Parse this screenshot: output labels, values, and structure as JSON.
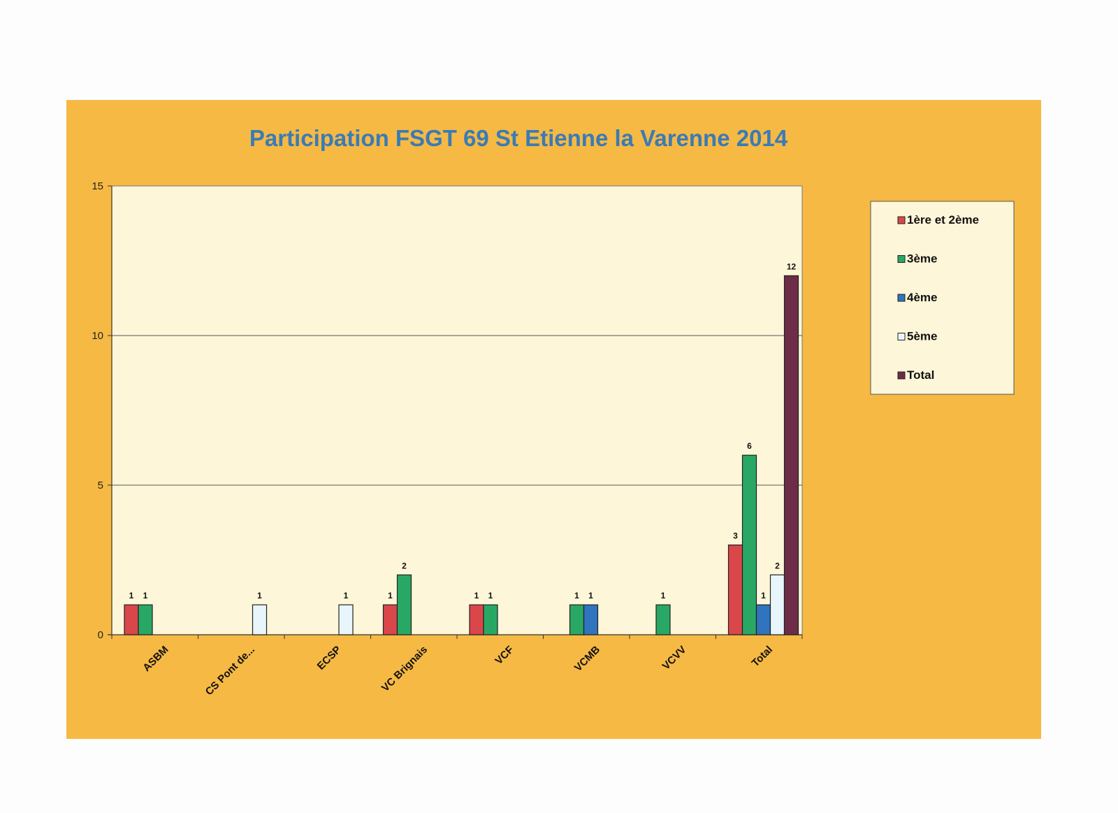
{
  "chart_data": {
    "type": "bar",
    "title": "Participation FSGT 69 St Etienne la Varenne 2014",
    "xlabel": "",
    "ylabel": "",
    "categories": [
      "ASBM",
      "CS Pont de...",
      "ECSP",
      "VC Brignais",
      "VCF",
      "VCMB",
      "VCVV",
      "Total"
    ],
    "yticks": [
      "0",
      "5",
      "10",
      "15"
    ],
    "ylim": [
      0,
      15
    ],
    "grid": true,
    "legend_position": "right",
    "series": [
      {
        "name": "1ère et 2ème",
        "color": "#d9474b",
        "values": [
          1,
          null,
          null,
          1,
          1,
          null,
          null,
          3
        ]
      },
      {
        "name": "3ème",
        "color": "#29a865",
        "values": [
          1,
          null,
          null,
          2,
          1,
          1,
          1,
          6
        ]
      },
      {
        "name": "4ème",
        "color": "#2f74bd",
        "values": [
          null,
          null,
          null,
          null,
          null,
          1,
          null,
          1
        ]
      },
      {
        "name": "5ème",
        "color": "#e8f5fb",
        "values": [
          null,
          1,
          1,
          null,
          null,
          null,
          null,
          2
        ]
      },
      {
        "name": "Total",
        "color": "#6d2c48",
        "values": [
          null,
          null,
          null,
          null,
          null,
          null,
          null,
          12
        ]
      }
    ],
    "colors": {
      "chart_background": "#f6b944",
      "plot_background": "#fdf6d8",
      "legend_background": "#fdf6d8",
      "title_color": "#3a7bb5"
    }
  }
}
